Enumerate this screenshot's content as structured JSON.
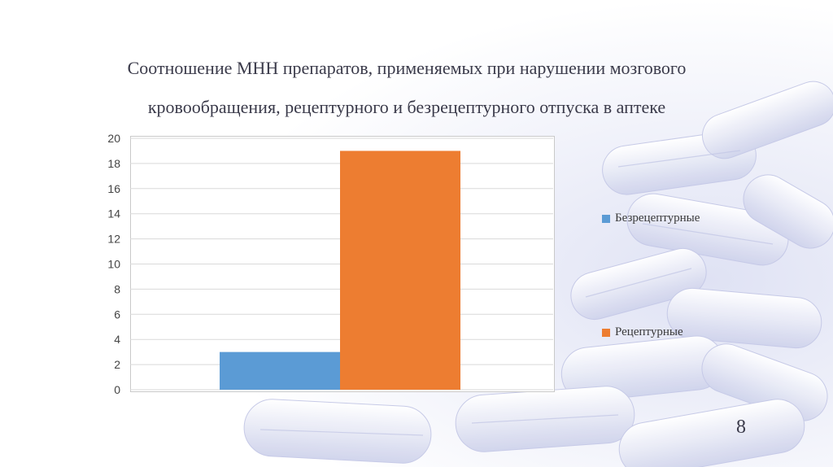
{
  "slide": {
    "title_line1": "Соотношение МНН препаратов, применяемых при нарушении мозгового",
    "title_line2": "кровообращения, рецептурного и безрецептурного отпуска в аптеке",
    "page_number": "8"
  },
  "chart_data": {
    "type": "bar",
    "categories": [
      ""
    ],
    "series": [
      {
        "name": "Безрецептурные",
        "values": [
          3
        ],
        "color": "#5B9BD5"
      },
      {
        "name": "Рецептурные",
        "values": [
          19
        ],
        "color": "#ED7D31"
      }
    ],
    "ylim": [
      0,
      20
    ],
    "yticks": [
      "0",
      "2",
      "4",
      "6",
      "8",
      "10",
      "12",
      "14",
      "16",
      "18",
      "20"
    ],
    "grid": true,
    "legend_position": "right"
  }
}
